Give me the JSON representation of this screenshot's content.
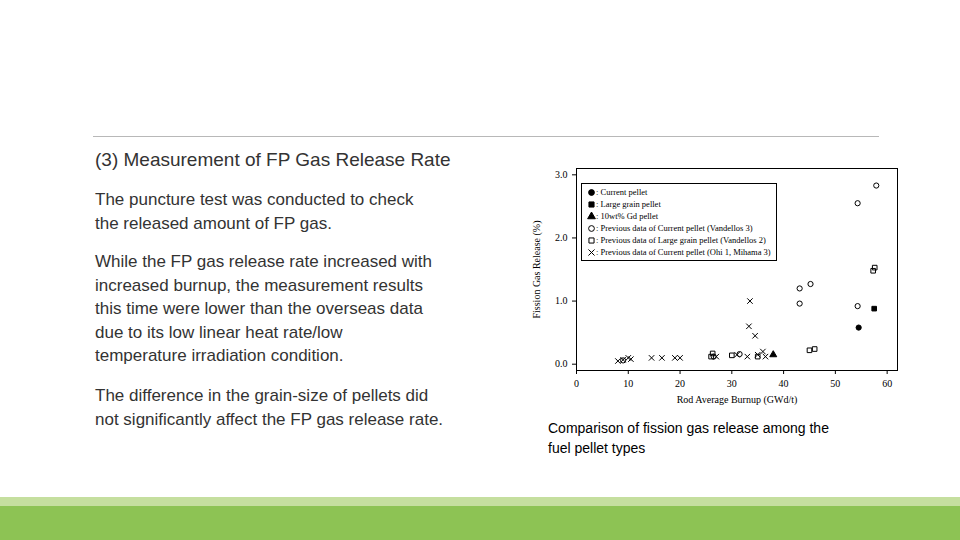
{
  "slide": {
    "heading": "(3)  Measurement of FP Gas Release Rate",
    "paragraphs": [
      [
        "The puncture test was conducted to check",
        "the released amount of FP gas."
      ],
      [
        "While the FP gas release rate increased with",
        "increased burnup, the measurement results",
        "this time were lower than the overseas data",
        "due to its low linear heat rate/low",
        "temperature irradiation condition."
      ],
      [
        "The difference  in the grain-size of pellets did",
        "not significantly affect the FP gas release rate."
      ]
    ],
    "caption": [
      "Comparison of fission gas release among the",
      "fuel pellet types"
    ]
  },
  "chart_data": {
    "type": "scatter",
    "x_label": "Rod Average Burnup (GWd/t)",
    "y_label": "Fission Gas Release (%)",
    "xlim": [
      0,
      62
    ],
    "ylim": [
      -0.1,
      3.1
    ],
    "xticks": [
      0,
      10,
      20,
      30,
      40,
      50,
      60
    ],
    "yticks": [
      {
        "value": 0,
        "label": "0.0"
      },
      {
        "value": 1,
        "label": "1.0"
      },
      {
        "value": 2,
        "label": "2.0"
      },
      {
        "value": 3,
        "label": "3.0"
      }
    ],
    "grid": false,
    "legend": "top-left",
    "series": [
      {
        "name": ": Current pellet",
        "color": "#000000",
        "marker": "filled-circle",
        "x": [
          54.5
        ],
        "values": [
          0.58
        ]
      },
      {
        "name": ": Large grain pellet",
        "color": "#000000",
        "marker": "filled-square",
        "x": [
          57.5
        ],
        "values": [
          0.88
        ]
      },
      {
        "name": ": 10wt% Gd pellet",
        "color": "#000000",
        "marker": "filled-triangle",
        "x": [
          38
        ],
        "values": [
          0.15
        ]
      },
      {
        "name": ": Previous data of Current pellet (Vandellos 3)",
        "color": "#000000",
        "marker": "open-circle",
        "x": [
          43.1,
          45.2,
          43.1,
          54.3,
          57.9,
          54.3,
          9,
          26.5,
          31.5
        ],
        "values": [
          1.2,
          1.27,
          0.96,
          2.55,
          2.83,
          0.92,
          0.06,
          0.12,
          0.16
        ]
      },
      {
        "name": ": Previous data of Large grain pellet (Vandellos 2)",
        "color": "#000000",
        "marker": "open-square",
        "x": [
          57.3,
          57.6,
          26,
          26.3,
          30,
          35,
          45,
          46
        ],
        "values": [
          1.48,
          1.53,
          0.12,
          0.17,
          0.14,
          0.12,
          0.22,
          0.24
        ]
      },
      {
        "name": ": Previous data of Current pellet (Ohi 1, Mihama 3)",
        "color": "#000000",
        "marker": "x",
        "x": [
          33.5,
          33.3,
          34.5,
          8,
          9,
          10,
          10.5,
          14.5,
          16.5,
          19,
          20,
          27,
          31,
          33,
          35,
          36,
          36.5
        ],
        "values": [
          1.0,
          0.6,
          0.45,
          0.05,
          0.07,
          0.1,
          0.08,
          0.1,
          0.1,
          0.1,
          0.1,
          0.12,
          0.15,
          0.12,
          0.15,
          0.2,
          0.12
        ]
      }
    ]
  }
}
